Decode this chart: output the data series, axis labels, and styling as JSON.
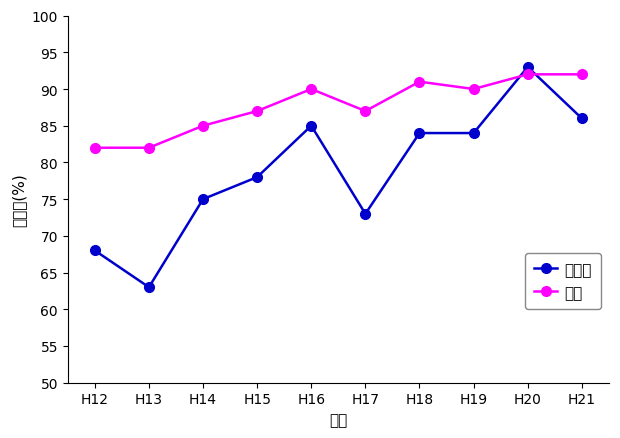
{
  "years": [
    "H12",
    "H13",
    "H14",
    "H15",
    "H16",
    "H17",
    "H18",
    "H19",
    "H20",
    "H21"
  ],
  "saitama": [
    68,
    63,
    75,
    78,
    85,
    73,
    84,
    84,
    93,
    86
  ],
  "national": [
    82,
    82,
    85,
    87,
    90,
    87,
    91,
    90,
    92,
    92
  ],
  "saitama_color": "#0000CD",
  "national_color": "#FF00FF",
  "xlabel": "年度",
  "ylabel": "達成率(%)",
  "ylim_min": 50,
  "ylim_max": 100,
  "yticks": [
    50,
    55,
    60,
    65,
    70,
    75,
    80,
    85,
    90,
    95,
    100
  ],
  "legend_saitama": "埼玉県",
  "legend_national": "全国",
  "marker": "o",
  "markersize": 7,
  "linewidth": 1.8,
  "background_color": "#ffffff"
}
